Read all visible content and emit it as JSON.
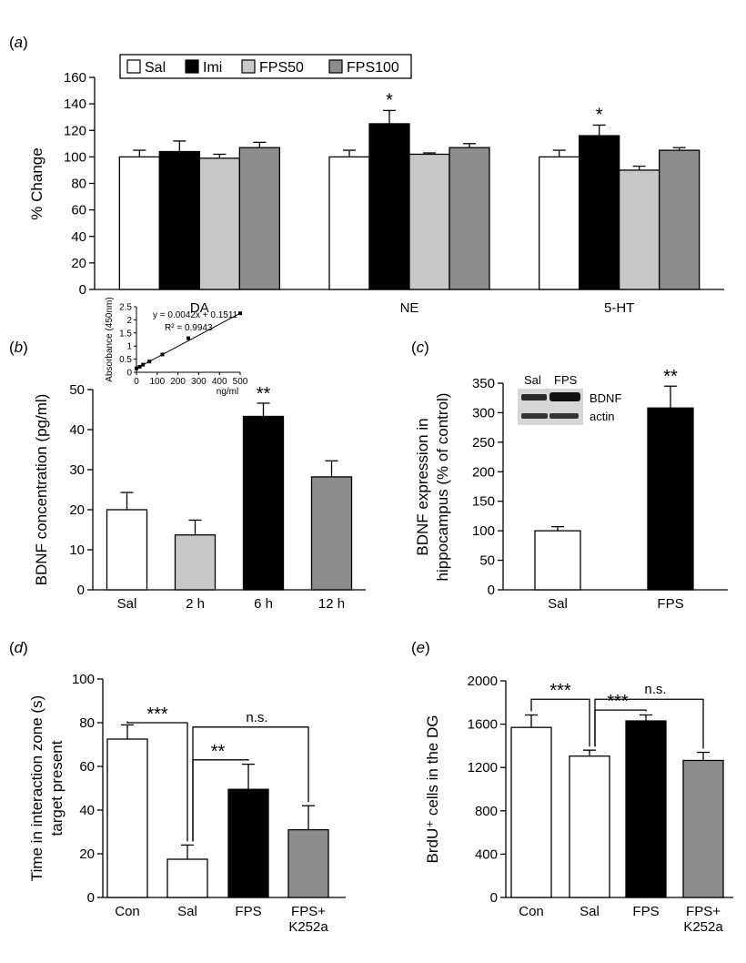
{
  "colors": {
    "sal": "#ffffff",
    "imi": "#000000",
    "fps50": "#c8c8c8",
    "fps100": "#8c8c8c",
    "con": "#ffffff",
    "fps": "#000000",
    "k252a": "#8c8c8c",
    "h2": "#c8c8c8",
    "h6": "#000000",
    "h12": "#8c8c8c"
  },
  "chart_data": [
    {
      "panel": "(a)",
      "type": "bar",
      "ylabel": "% Change",
      "ylim": [
        0,
        160
      ],
      "yticks": [
        0,
        20,
        40,
        60,
        80,
        100,
        120,
        140,
        160
      ],
      "categories": [
        "DA",
        "NE",
        "5-HT"
      ],
      "legend": {
        "placement": "top",
        "entries": [
          "Sal",
          "Imi",
          "FPS50",
          "FPS100"
        ]
      },
      "series": [
        {
          "name": "Sal",
          "color_key": "sal",
          "values": [
            100,
            100,
            100
          ],
          "errors": [
            5,
            5,
            5
          ],
          "sig": [
            "",
            "",
            ""
          ]
        },
        {
          "name": "Imi",
          "color_key": "imi",
          "values": [
            104,
            125,
            116
          ],
          "errors": [
            8,
            10,
            8
          ],
          "sig": [
            "",
            "*",
            "*"
          ]
        },
        {
          "name": "FPS50",
          "color_key": "fps50",
          "values": [
            99,
            102,
            90
          ],
          "errors": [
            3,
            1,
            3
          ],
          "sig": [
            "",
            "",
            ""
          ]
        },
        {
          "name": "FPS100",
          "color_key": "fps100",
          "values": [
            107,
            107,
            105
          ],
          "errors": [
            4,
            3,
            2
          ],
          "sig": [
            "",
            "",
            ""
          ]
        }
      ]
    },
    {
      "panel": "(b)",
      "type": "bar",
      "ylabel": "BDNF concentration (pg/ml)",
      "ylim": [
        0,
        50
      ],
      "yticks": [
        0,
        10,
        20,
        30,
        40,
        50
      ],
      "categories": [
        "Sal",
        "2 h",
        "6 h",
        "12 h"
      ],
      "color_keys": [
        "sal",
        "h2",
        "h6",
        "h12"
      ],
      "values": [
        20,
        13.7,
        43.3,
        28.2
      ],
      "errors": [
        4.3,
        3.7,
        3.3,
        4.0
      ],
      "sig": [
        "",
        "",
        "**",
        ""
      ],
      "inset": {
        "type": "scatter",
        "xlabel": "ng/ml",
        "ylabel": "Absorbance (450nm)",
        "xlim": [
          0,
          500
        ],
        "ylim": [
          0,
          2.5
        ],
        "xticks": [
          0,
          100,
          200,
          300,
          400,
          500
        ],
        "yticks": [
          0,
          0.5,
          1,
          1.5,
          2,
          2.5
        ],
        "equation": "y = 0.0042x + 0.1511",
        "r2": "R² = 0.9943",
        "x": [
          0,
          15.6,
          31.25,
          62.5,
          125,
          250,
          500
        ],
        "y": [
          0.15,
          0.21,
          0.29,
          0.41,
          0.68,
          1.3,
          2.25
        ],
        "fit_slope": 0.0042,
        "fit_intercept": 0.1511
      }
    },
    {
      "panel": "(c)",
      "type": "bar",
      "ylabel_lines": [
        "BDNF expression in",
        "hippocampus (% of control)"
      ],
      "ylim": [
        0,
        350
      ],
      "yticks": [
        0,
        50,
        100,
        150,
        200,
        250,
        300,
        350
      ],
      "categories": [
        "Sal",
        "FPS"
      ],
      "color_keys": [
        "sal",
        "fps"
      ],
      "values": [
        100,
        308
      ],
      "errors": [
        7,
        37
      ],
      "sig": [
        "",
        "**"
      ],
      "blot": {
        "lanes": [
          "Sal",
          "FPS"
        ],
        "bands": [
          "BDNF",
          "actin"
        ]
      }
    },
    {
      "panel": "(d)",
      "type": "bar",
      "ylabel_lines": [
        "Time in interaction zone (s)",
        "target present"
      ],
      "ylim": [
        0,
        100
      ],
      "yticks": [
        0,
        20,
        40,
        60,
        80,
        100
      ],
      "categories": [
        "Con",
        "Sal",
        "FPS",
        "FPS+\nK252a"
      ],
      "color_keys": [
        "con",
        "sal",
        "fps",
        "k252a"
      ],
      "values": [
        72.5,
        17.5,
        49.5,
        31
      ],
      "errors": [
        6.5,
        6.5,
        11.5,
        11
      ],
      "comparisons": [
        {
          "from": 0,
          "to": 1,
          "label": "***",
          "level": 80
        },
        {
          "from": 1,
          "to": 2,
          "label": "**",
          "level": 63
        },
        {
          "from": 1,
          "to": 3,
          "label": "n.s.",
          "level": 78
        }
      ]
    },
    {
      "panel": "(e)",
      "type": "bar",
      "ylabel": "BrdU⁺ cells in the DG",
      "ylim": [
        0,
        2000
      ],
      "yticks": [
        0,
        400,
        800,
        1200,
        1600,
        2000
      ],
      "categories": [
        "Con",
        "Sal",
        "FPS",
        "FPS+\nK252a"
      ],
      "color_keys": [
        "con",
        "sal",
        "fps",
        "k252a"
      ],
      "values": [
        1570,
        1305,
        1630,
        1265
      ],
      "errors": [
        115,
        55,
        55,
        75
      ],
      "comparisons": [
        {
          "from": 0,
          "to": 1,
          "label": "***",
          "level": 1830
        },
        {
          "from": 1,
          "to": 2,
          "label": "***",
          "level": 1730
        },
        {
          "from": 1,
          "to": 3,
          "label": "n.s.",
          "level": 1830
        }
      ]
    }
  ]
}
